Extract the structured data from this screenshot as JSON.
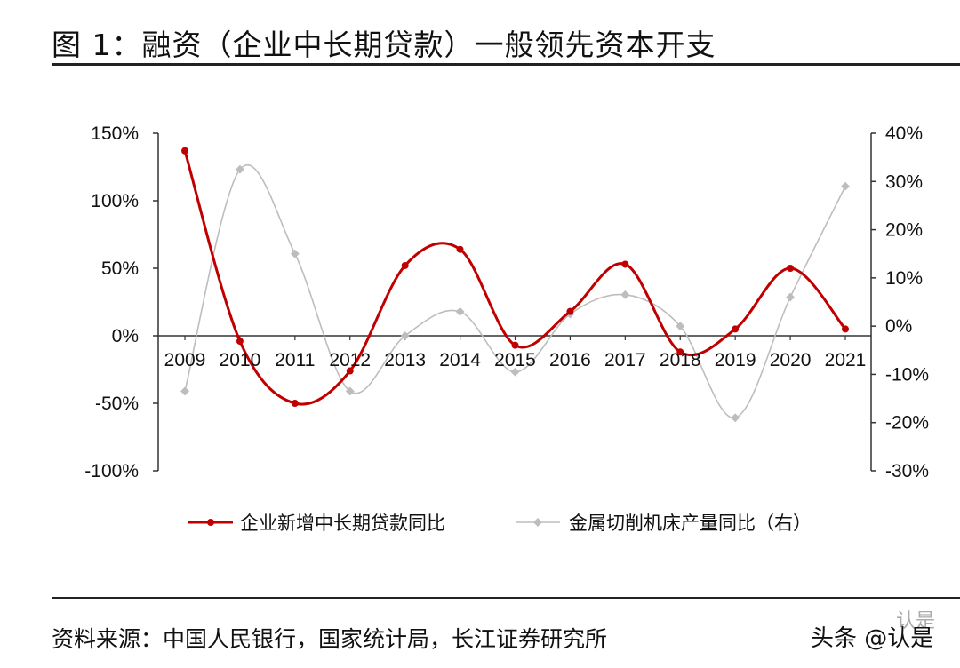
{
  "header": {
    "title": "图 1：融资（企业中长期贷款）一般领先资本开支"
  },
  "footer": {
    "source": "资料来源：中国人民银行，国家统计局，长江证券研究所",
    "watermark": "头条 @认是",
    "watermark_logo": "认是"
  },
  "chart_data": {
    "type": "line",
    "categories": [
      "2009",
      "2010",
      "2011",
      "2012",
      "2013",
      "2014",
      "2015",
      "2016",
      "2017",
      "2018",
      "2019",
      "2020",
      "2021"
    ],
    "y_left": {
      "ticks": [
        "150%",
        "100%",
        "50%",
        "0%",
        "-50%",
        "-100%"
      ],
      "ylim": [
        -100,
        150
      ]
    },
    "y_right": {
      "ticks": [
        "40%",
        "30%",
        "20%",
        "10%",
        "0%",
        "-10%",
        "-20%",
        "-30%"
      ],
      "ylim": [
        -30,
        40
      ]
    },
    "grid": false,
    "legend_position": "bottom",
    "series": [
      {
        "name": "企业新增中长期贷款同比",
        "axis": "left",
        "color": "#c00000",
        "values": [
          137,
          -4,
          -50,
          -26,
          52,
          64,
          -7,
          18,
          53,
          -12,
          5,
          50,
          5
        ]
      },
      {
        "name": "金属切削机床产量同比（右）",
        "axis": "right",
        "color": "#bdbdbd",
        "values": [
          -13.5,
          32.5,
          15,
          -13.5,
          -2,
          3,
          -9.5,
          2.5,
          6.5,
          0,
          -19,
          6,
          29
        ]
      }
    ]
  }
}
